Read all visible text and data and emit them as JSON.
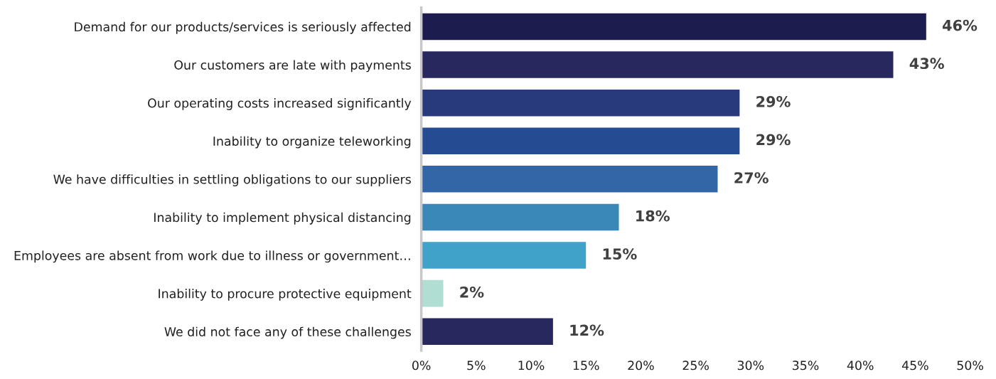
{
  "chart_data": {
    "type": "bar",
    "orientation": "horizontal",
    "categories": [
      "Demand for our products/services is seriously affected",
      "Our customers are late with payments",
      "Our operating costs increased significantly",
      "Inability to organize teleworking",
      "We have difficulties in settling obligations to our suppliers",
      "Inability to implement physical distancing",
      "Employees are absent from work due to illness or government…",
      "Inability to procure protective equipment",
      "We did not face any of these challenges"
    ],
    "values": [
      46,
      43,
      29,
      29,
      27,
      18,
      15,
      2,
      12
    ],
    "colors": [
      "#1c1c4e",
      "#29285e",
      "#293a7c",
      "#254b92",
      "#3366a6",
      "#3a88b8",
      "#40a2c8",
      "#b0ded2",
      "#29285e"
    ],
    "xlim": [
      0,
      50
    ],
    "xticks": [
      {
        "value": 0,
        "label": "0%"
      },
      {
        "value": 5,
        "label": "5%"
      },
      {
        "value": 10,
        "label": "10%"
      },
      {
        "value": 15,
        "label": "15%"
      },
      {
        "value": 20,
        "label": "20%"
      },
      {
        "value": 25,
        "label": "25%"
      },
      {
        "value": 30,
        "label": "30%"
      },
      {
        "value": 35,
        "label": "35%"
      },
      {
        "value": 40,
        "label": "40%"
      },
      {
        "value": 45,
        "label": "45%"
      },
      {
        "value": 50,
        "label": "50%"
      }
    ],
    "value_labels": [
      "46%",
      "43%",
      "29%",
      "29%",
      "27%",
      "18%",
      "15%",
      "2%",
      "12%"
    ],
    "grid": false,
    "legend": false
  }
}
